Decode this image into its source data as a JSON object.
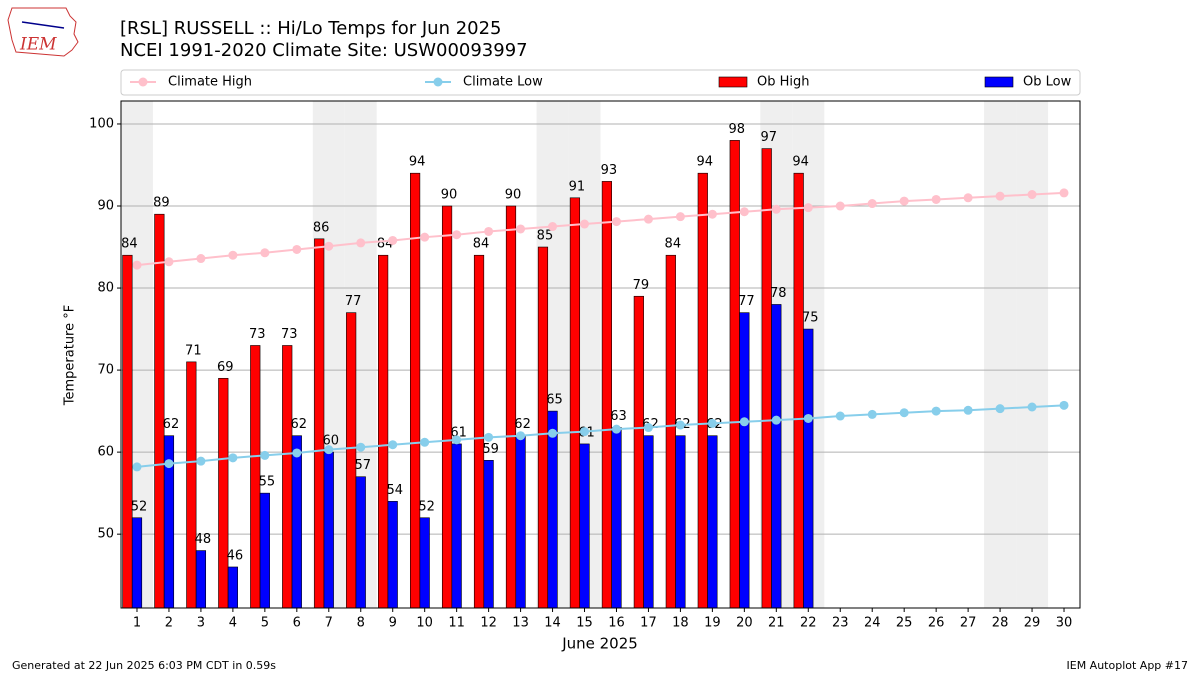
{
  "chart_data": {
    "type": "bar",
    "logo_text": "IEM",
    "title": "[RSL] RUSSELL :: Hi/Lo Temps for Jun 2025",
    "subtitle": "NCEI 1991-2020 Climate Site: USW00093997",
    "xlabel": "June 2025",
    "ylabel": "Temperature °F",
    "footer_left": "Generated at 22 Jun 2025 6:03 PM CDT in 0.59s",
    "footer_right": "IEM Autoplot App #17",
    "x": [
      1,
      2,
      3,
      4,
      5,
      6,
      7,
      8,
      9,
      10,
      11,
      12,
      13,
      14,
      15,
      16,
      17,
      18,
      19,
      20,
      21,
      22,
      23,
      24,
      25,
      26,
      27,
      28,
      29,
      30
    ],
    "xlim": [
      0.5,
      30.5
    ],
    "xticks": [
      1,
      2,
      3,
      4,
      5,
      6,
      7,
      8,
      9,
      10,
      11,
      12,
      13,
      14,
      15,
      16,
      17,
      18,
      19,
      20,
      21,
      22,
      23,
      24,
      25,
      26,
      27,
      28,
      29,
      30
    ],
    "ylim": [
      41,
      102.8
    ],
    "yticks": [
      50,
      60,
      70,
      80,
      90,
      100
    ],
    "grid": true,
    "shaded_days": [
      1,
      7,
      8,
      14,
      15,
      21,
      22,
      28,
      29
    ],
    "legend": "top",
    "series": [
      {
        "name": "Climate High",
        "type": "line",
        "color": "#ffc0cb",
        "values": [
          82.8,
          83.2,
          83.6,
          84.0,
          84.3,
          84.7,
          85.1,
          85.5,
          85.8,
          86.2,
          86.5,
          86.9,
          87.2,
          87.5,
          87.8,
          88.1,
          88.4,
          88.7,
          89.0,
          89.3,
          89.6,
          89.8,
          90.0,
          90.3,
          90.6,
          90.8,
          91.0,
          91.2,
          91.4,
          91.6
        ]
      },
      {
        "name": "Climate Low",
        "type": "line",
        "color": "#87ceeb",
        "values": [
          58.2,
          58.6,
          58.9,
          59.3,
          59.6,
          59.9,
          60.3,
          60.6,
          60.9,
          61.2,
          61.5,
          61.8,
          62.0,
          62.3,
          62.5,
          62.8,
          63.0,
          63.3,
          63.5,
          63.7,
          63.9,
          64.1,
          64.4,
          64.6,
          64.8,
          65.0,
          65.1,
          65.3,
          65.5,
          65.7
        ]
      },
      {
        "name": "Ob High",
        "type": "bar",
        "color": "#ff0000",
        "values": [
          84,
          89,
          71,
          69,
          73,
          73,
          86,
          77,
          84,
          94,
          90,
          84,
          90,
          85,
          91,
          93,
          79,
          84,
          94,
          98,
          97,
          94,
          null,
          null,
          null,
          null,
          null,
          null,
          null,
          null
        ]
      },
      {
        "name": "Ob Low",
        "type": "bar",
        "color": "#0000ff",
        "values": [
          52,
          62,
          48,
          46,
          55,
          62,
          60,
          57,
          54,
          52,
          61,
          59,
          62,
          65,
          61,
          63,
          62,
          62,
          62,
          77,
          78,
          75,
          null,
          null,
          null,
          null,
          null,
          null,
          null,
          null
        ]
      }
    ]
  }
}
